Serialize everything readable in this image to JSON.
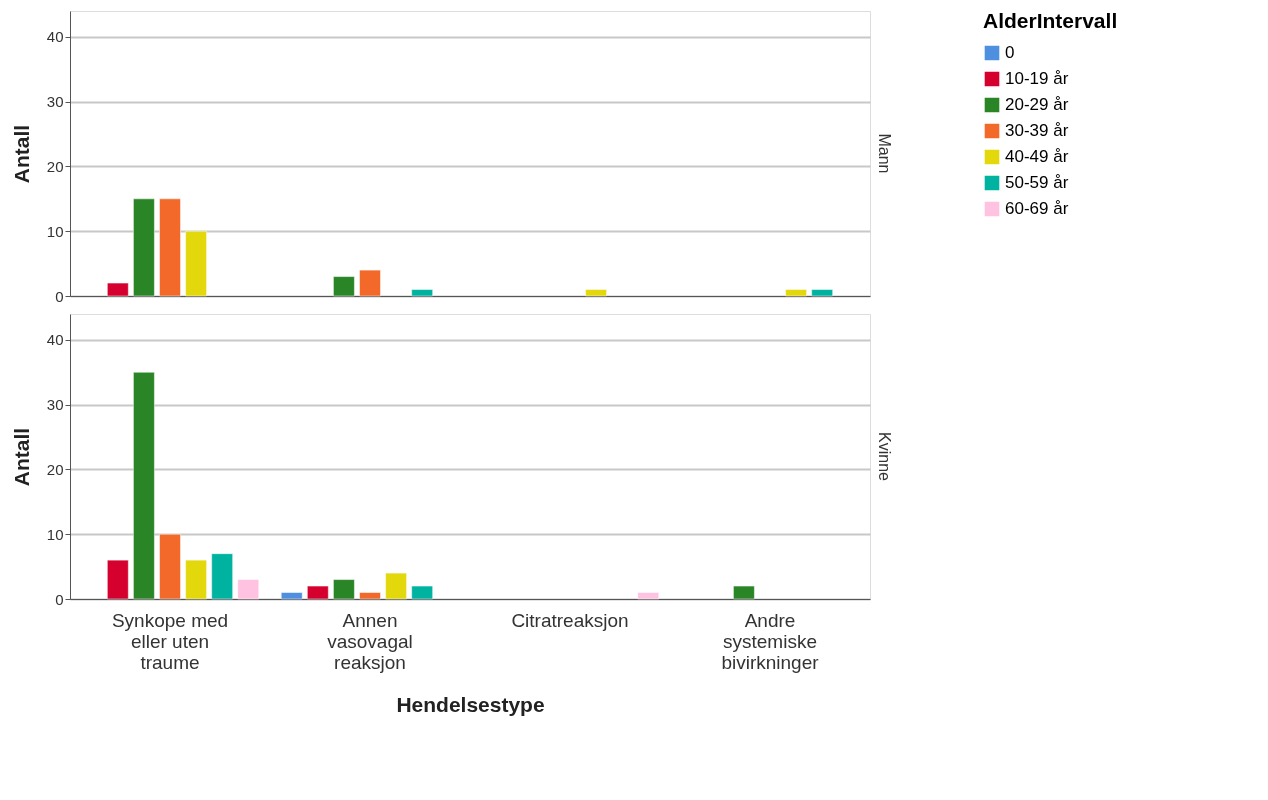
{
  "chart_data": [
    {
      "type": "bar",
      "title": "Mann",
      "ylabel": "Antall",
      "legend_title": "AlderIntervall",
      "legend": "top right",
      "grid": "y",
      "tick_labels": "y",
      "categories": [
        null,
        null,
        null,
        null
      ],
      "ylim": [
        0,
        44
      ],
      "yticks": [
        0,
        10,
        20,
        30,
        40
      ],
      "series": [
        {
          "name": "0",
          "color": "#4f8fe0",
          "values": [
            null,
            null,
            null,
            null
          ]
        },
        {
          "name": "10-19 år",
          "color": "#d6002f",
          "values": [
            2,
            null,
            null,
            null
          ]
        },
        {
          "name": "20-29 år",
          "color": "#2a8526",
          "values": [
            15,
            3,
            null,
            null
          ]
        },
        {
          "name": "30-39 år",
          "color": "#f2692a",
          "values": [
            15,
            4,
            null,
            null
          ]
        },
        {
          "name": "40-49 år",
          "color": "#e3d80c",
          "values": [
            10,
            null,
            1,
            1
          ]
        },
        {
          "name": "50-59 år",
          "color": "#00b3a0",
          "values": [
            null,
            1,
            null,
            1
          ]
        },
        {
          "name": "60-69 år",
          "color": "#ffc2e0",
          "values": [
            null,
            null,
            null,
            null
          ]
        }
      ]
    },
    {
      "type": "bar",
      "title": "Kvinne",
      "ylabel": "Antall",
      "xlabel": "Hendelsestype",
      "grid": "y",
      "categories": [
        "Synkope med\neller uten\ntraume",
        "Annen\nvasovagal\nreaksjon",
        "Citratreaksjon",
        "Andre\nsystemiske\nbivirkninger"
      ],
      "ylim": [
        0,
        44
      ],
      "yticks": [
        0,
        10,
        20,
        30,
        40
      ],
      "series": [
        {
          "color": "#4f8fe0",
          "values": [
            null,
            1,
            null,
            null
          ]
        },
        {
          "color": "#d6002f",
          "values": [
            6,
            2,
            null,
            null
          ]
        },
        {
          "color": "#2a8526",
          "values": [
            35,
            3,
            null,
            2
          ]
        },
        {
          "color": "#f2692a",
          "values": [
            10,
            1,
            null,
            null
          ]
        },
        {
          "color": "#e3d80c",
          "values": [
            6,
            4,
            null,
            null
          ]
        },
        {
          "color": "#00b3a0",
          "values": [
            7,
            2,
            null,
            null
          ]
        },
        {
          "color": "#ffc2e0",
          "values": [
            3,
            null,
            1,
            null
          ]
        }
      ]
    }
  ]
}
